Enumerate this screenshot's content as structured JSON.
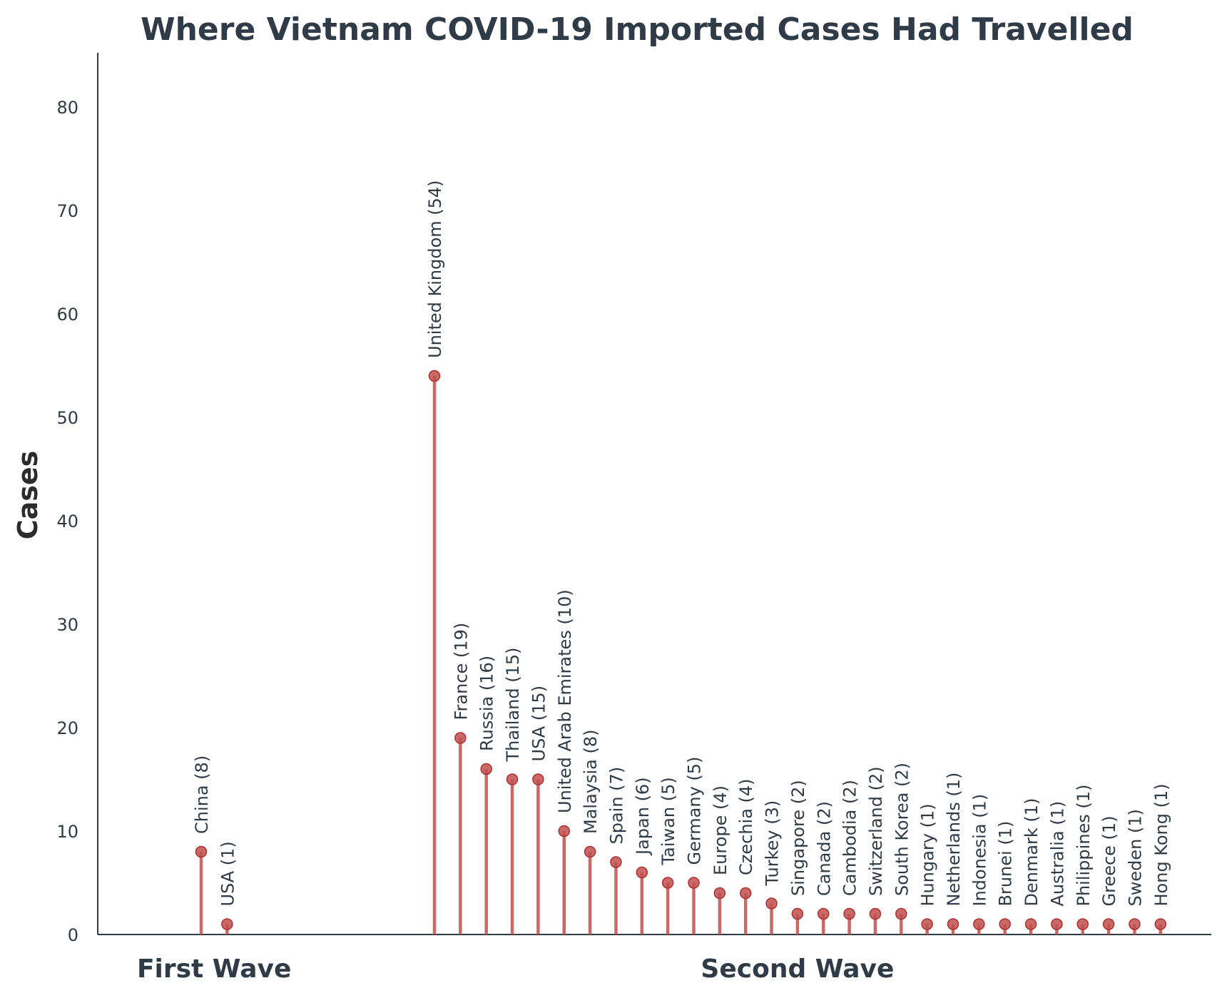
{
  "chart_data": {
    "type": "lollipop",
    "title": "Where Vietnam COVID-19 Imported Cases Had Travelled",
    "ylabel": "Cases",
    "xlabel": "",
    "ylim": [
      0,
      85
    ],
    "yticks": [
      0,
      10,
      20,
      30,
      40,
      50,
      60,
      70,
      80
    ],
    "grid": false,
    "color": "#c0504d",
    "groups": [
      "First Wave",
      "Second Wave"
    ],
    "points": [
      {
        "label": "China (8)",
        "group": "First Wave",
        "value": 8
      },
      {
        "label": "USA (1)",
        "group": "First Wave",
        "value": 1
      },
      {
        "label": "United Kingdom (54)",
        "group": "Second Wave",
        "value": 54
      },
      {
        "label": "France (19)",
        "group": "Second Wave",
        "value": 19
      },
      {
        "label": "Russia (16)",
        "group": "Second Wave",
        "value": 16
      },
      {
        "label": "Thailand (15)",
        "group": "Second Wave",
        "value": 15
      },
      {
        "label": "USA (15)",
        "group": "Second Wave",
        "value": 15
      },
      {
        "label": "United Arab Emirates (10)",
        "group": "Second Wave",
        "value": 10
      },
      {
        "label": "Malaysia (8)",
        "group": "Second Wave",
        "value": 8
      },
      {
        "label": "Spain (7)",
        "group": "Second Wave",
        "value": 7
      },
      {
        "label": "Japan (6)",
        "group": "Second Wave",
        "value": 6
      },
      {
        "label": "Taiwan (5)",
        "group": "Second Wave",
        "value": 5
      },
      {
        "label": "Germany (5)",
        "group": "Second Wave",
        "value": 5
      },
      {
        "label": "Europe (4)",
        "group": "Second Wave",
        "value": 4
      },
      {
        "label": "Czechia (4)",
        "group": "Second Wave",
        "value": 4
      },
      {
        "label": "Turkey (3)",
        "group": "Second Wave",
        "value": 3
      },
      {
        "label": "Singapore (2)",
        "group": "Second Wave",
        "value": 2
      },
      {
        "label": "Canada (2)",
        "group": "Second Wave",
        "value": 2
      },
      {
        "label": "Cambodia (2)",
        "group": "Second Wave",
        "value": 2
      },
      {
        "label": "Switzerland (2)",
        "group": "Second Wave",
        "value": 2
      },
      {
        "label": "South Korea (2)",
        "group": "Second Wave",
        "value": 2
      },
      {
        "label": "Hungary (1)",
        "group": "Second Wave",
        "value": 1
      },
      {
        "label": "Netherlands (1)",
        "group": "Second Wave",
        "value": 1
      },
      {
        "label": "Indonesia (1)",
        "group": "Second Wave",
        "value": 1
      },
      {
        "label": "Brunei (1)",
        "group": "Second Wave",
        "value": 1
      },
      {
        "label": "Denmark (1)",
        "group": "Second Wave",
        "value": 1
      },
      {
        "label": "Australia (1)",
        "group": "Second Wave",
        "value": 1
      },
      {
        "label": "Philippines (1)",
        "group": "Second Wave",
        "value": 1
      },
      {
        "label": "Greece (1)",
        "group": "Second Wave",
        "value": 1
      },
      {
        "label": "Sweden (1)",
        "group": "Second Wave",
        "value": 1
      },
      {
        "label": "Hong Kong (1)",
        "group": "Second Wave",
        "value": 1
      }
    ]
  }
}
